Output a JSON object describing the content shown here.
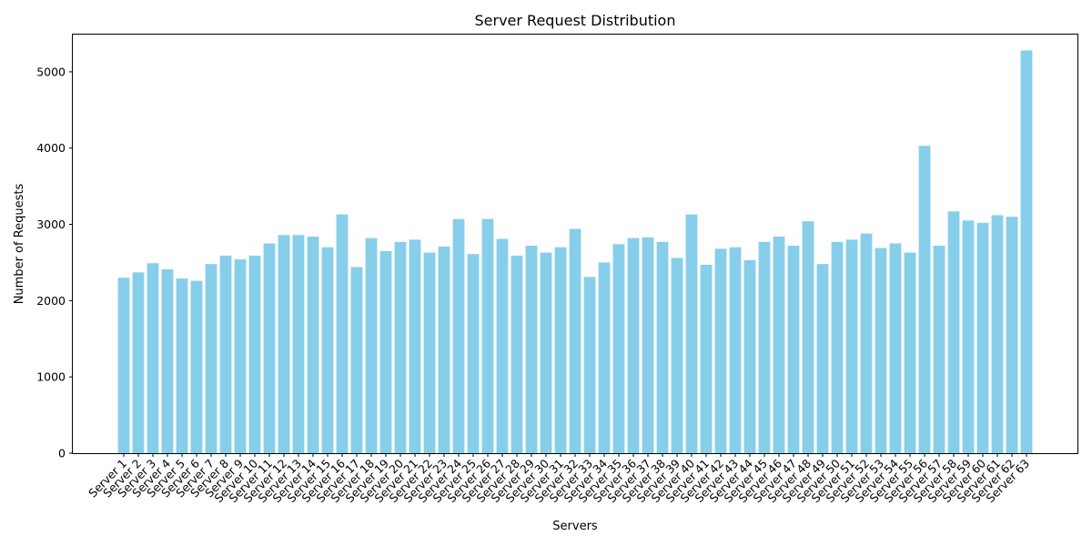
{
  "chart_data": {
    "type": "bar",
    "title": "Server Request Distribution",
    "xlabel": "Servers",
    "ylabel": "Number of Requests",
    "ylim": [
      0,
      5500
    ],
    "yticks": [
      0,
      1000,
      2000,
      3000,
      4000,
      5000
    ],
    "grid": false,
    "bar_color": "#87CEEB",
    "categories": [
      "Server 1",
      "Server 2",
      "Server 3",
      "Server 4",
      "Server 5",
      "Server 6",
      "Server 7",
      "Server 8",
      "Server 9",
      "Server 10",
      "Server 11",
      "Server 12",
      "Server 13",
      "Server 14",
      "Server 15",
      "Server 16",
      "Server 17",
      "Server 18",
      "Server 19",
      "Server 20",
      "Server 21",
      "Server 22",
      "Server 23",
      "Server 24",
      "Server 25",
      "Server 26",
      "Server 27",
      "Server 28",
      "Server 29",
      "Server 30",
      "Server 31",
      "Server 32",
      "Server 33",
      "Server 34",
      "Server 35",
      "Server 36",
      "Server 37",
      "Server 38",
      "Server 39",
      "Server 40",
      "Server 41",
      "Server 42",
      "Server 43",
      "Server 44",
      "Server 45",
      "Server 46",
      "Server 47",
      "Server 48",
      "Server 49",
      "Server 50",
      "Server 51",
      "Server 52",
      "Server 53",
      "Server 54",
      "Server 55",
      "Server 56",
      "Server 57",
      "Server 58",
      "Server 59",
      "Server 60",
      "Server 61",
      "Server 62",
      "Server 63"
    ],
    "values": [
      2300,
      2370,
      2490,
      2410,
      2290,
      2260,
      2480,
      2590,
      2540,
      2590,
      2750,
      2860,
      2860,
      2840,
      2700,
      3130,
      2440,
      2820,
      2650,
      2770,
      2800,
      2630,
      2710,
      3070,
      2610,
      3070,
      2810,
      2590,
      2720,
      2630,
      2700,
      2940,
      2310,
      2500,
      2740,
      2820,
      2830,
      2770,
      2560,
      3130,
      2470,
      2680,
      2700,
      2530,
      2770,
      2840,
      2720,
      3040,
      2480,
      2770,
      2800,
      2880,
      2690,
      2750,
      2630,
      4030,
      2720,
      3170,
      3050,
      3020,
      3120,
      3100,
      5280
    ]
  }
}
